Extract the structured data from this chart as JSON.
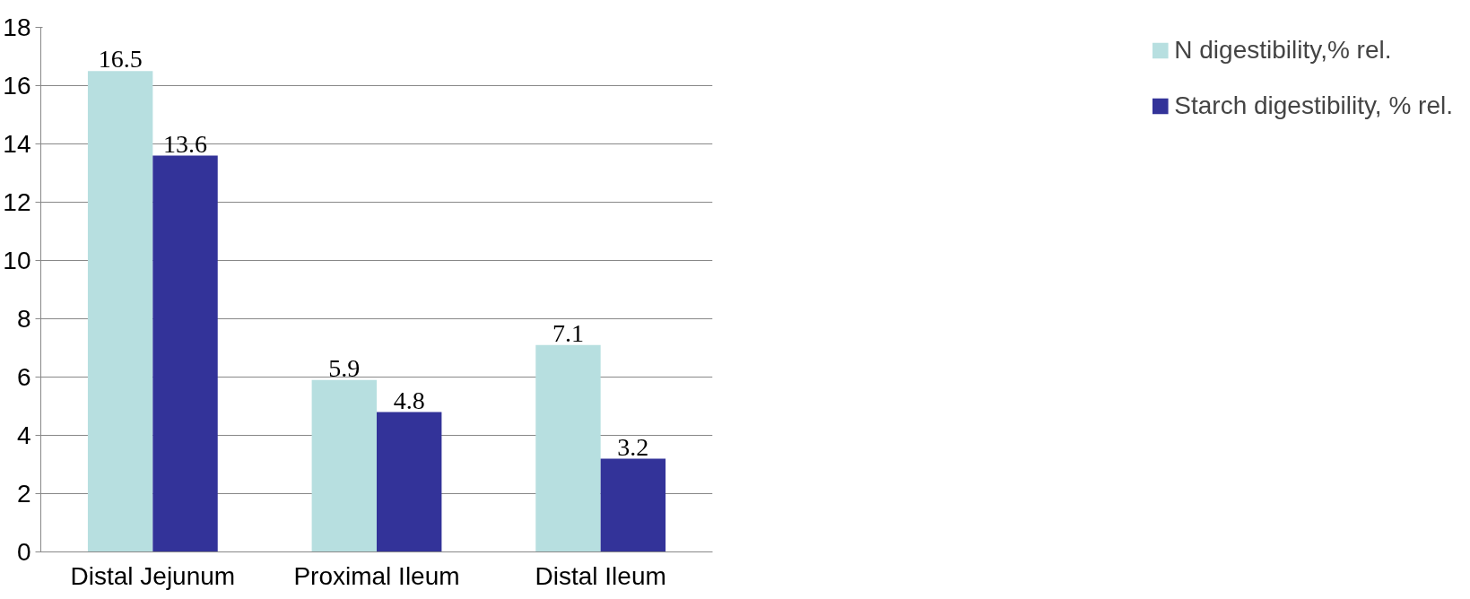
{
  "chart_data": {
    "type": "bar",
    "categories": [
      "Distal Jejunum",
      "Proximal Ileum",
      "Distal Ileum"
    ],
    "series": [
      {
        "name": "N digestibility,% rel.",
        "color": "#b7dfe0",
        "values": [
          16.5,
          5.9,
          7.1
        ]
      },
      {
        "name": "Starch digestibility, % rel.",
        "color": "#333399",
        "values": [
          13.6,
          4.8,
          3.2
        ]
      }
    ],
    "ylim": [
      0,
      18
    ],
    "yticks": [
      0,
      2,
      4,
      6,
      8,
      10,
      12,
      14,
      16,
      18
    ],
    "grid": "y",
    "legend": "right",
    "data_labels": true
  }
}
